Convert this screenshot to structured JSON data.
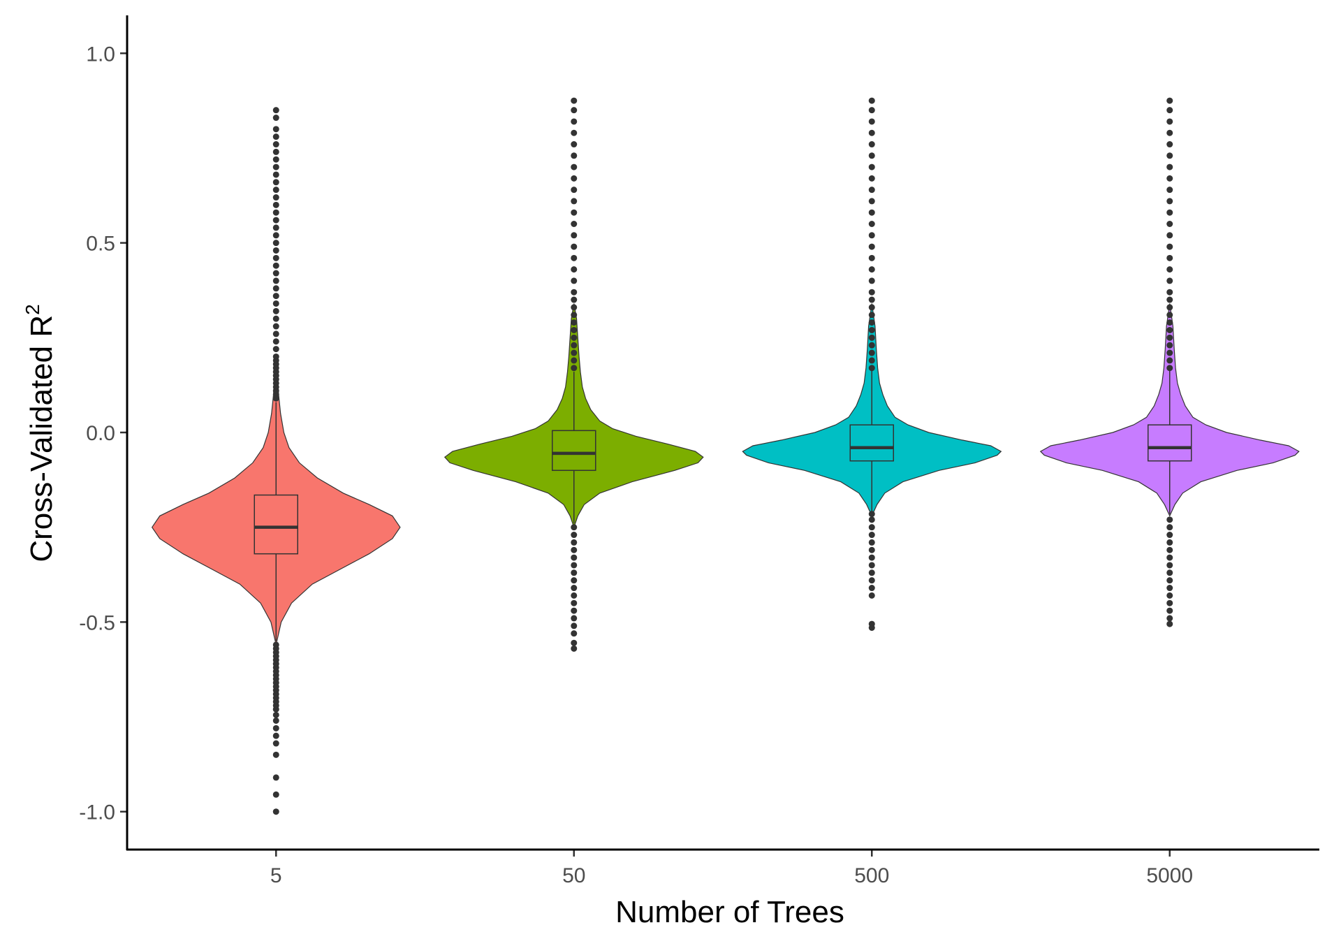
{
  "chart_data": {
    "type": "violin",
    "xlabel": "Number of Trees",
    "ylabel": "Cross-Validated R",
    "ylabel_superscript": "2",
    "ylim": [
      -1.1,
      1.1
    ],
    "y_ticks": [
      -1.0,
      -0.5,
      0.0,
      0.5,
      1.0
    ],
    "y_tick_labels": [
      "-1.0",
      "-0.5",
      "0.0",
      "0.5",
      "1.0"
    ],
    "categories": [
      "5",
      "50",
      "500",
      "5000"
    ],
    "grid": false,
    "legend": "none",
    "series": [
      {
        "category": "5",
        "color": "#F8766D",
        "box": {
          "lower_whisker": -0.55,
          "q1": -0.32,
          "median": -0.25,
          "q3": -0.165,
          "upper_whisker": 0.08
        },
        "density": [
          [
            -0.56,
            0.0
          ],
          [
            -0.5,
            0.04
          ],
          [
            -0.45,
            0.12
          ],
          [
            -0.4,
            0.28
          ],
          [
            -0.36,
            0.5
          ],
          [
            -0.32,
            0.72
          ],
          [
            -0.28,
            0.9
          ],
          [
            -0.25,
            0.96
          ],
          [
            -0.22,
            0.9
          ],
          [
            -0.19,
            0.72
          ],
          [
            -0.16,
            0.52
          ],
          [
            -0.12,
            0.32
          ],
          [
            -0.08,
            0.18
          ],
          [
            -0.04,
            0.1
          ],
          [
            0.0,
            0.06
          ],
          [
            0.05,
            0.035
          ],
          [
            0.1,
            0.02
          ],
          [
            0.15,
            0.012
          ],
          [
            0.2,
            0.0
          ]
        ],
        "outliers": [
          -1.0,
          -0.955,
          -0.91,
          -0.85,
          -0.82,
          -0.8,
          -0.78,
          -0.76,
          -0.745,
          -0.73,
          -0.72,
          -0.71,
          -0.7,
          -0.69,
          -0.68,
          -0.67,
          -0.66,
          -0.65,
          -0.64,
          -0.63,
          -0.62,
          -0.61,
          -0.6,
          -0.59,
          -0.58,
          -0.57,
          -0.56,
          0.09,
          0.1,
          0.11,
          0.12,
          0.13,
          0.14,
          0.15,
          0.16,
          0.17,
          0.18,
          0.19,
          0.2,
          0.22,
          0.24,
          0.26,
          0.28,
          0.3,
          0.32,
          0.34,
          0.36,
          0.38,
          0.4,
          0.42,
          0.44,
          0.46,
          0.48,
          0.5,
          0.52,
          0.54,
          0.56,
          0.58,
          0.6,
          0.62,
          0.64,
          0.66,
          0.68,
          0.7,
          0.72,
          0.74,
          0.76,
          0.78,
          0.8,
          0.83,
          0.85
        ]
      },
      {
        "category": "50",
        "color": "#7CAE00",
        "box": {
          "lower_whisker": -0.24,
          "q1": -0.1,
          "median": -0.055,
          "q3": 0.005,
          "upper_whisker": 0.16
        },
        "density": [
          [
            -0.25,
            0.0
          ],
          [
            -0.22,
            0.03
          ],
          [
            -0.19,
            0.08
          ],
          [
            -0.16,
            0.2
          ],
          [
            -0.13,
            0.45
          ],
          [
            -0.1,
            0.78
          ],
          [
            -0.08,
            0.96
          ],
          [
            -0.065,
            1.0
          ],
          [
            -0.05,
            0.94
          ],
          [
            -0.03,
            0.72
          ],
          [
            -0.01,
            0.48
          ],
          [
            0.01,
            0.3
          ],
          [
            0.03,
            0.2
          ],
          [
            0.06,
            0.13
          ],
          [
            0.09,
            0.09
          ],
          [
            0.12,
            0.065
          ],
          [
            0.16,
            0.05
          ],
          [
            0.2,
            0.04
          ],
          [
            0.25,
            0.03
          ],
          [
            0.3,
            0.02
          ],
          [
            0.34,
            0.0
          ]
        ],
        "outliers": [
          -0.57,
          -0.555,
          -0.53,
          -0.51,
          -0.49,
          -0.47,
          -0.45,
          -0.43,
          -0.41,
          -0.39,
          -0.37,
          -0.35,
          -0.33,
          -0.31,
          -0.29,
          -0.27,
          -0.25,
          0.17,
          0.19,
          0.21,
          0.23,
          0.25,
          0.27,
          0.29,
          0.31,
          0.33,
          0.35,
          0.37,
          0.4,
          0.43,
          0.46,
          0.49,
          0.52,
          0.55,
          0.58,
          0.61,
          0.64,
          0.67,
          0.7,
          0.73,
          0.76,
          0.79,
          0.82,
          0.85,
          0.875
        ]
      },
      {
        "category": "500",
        "color": "#00BFC4",
        "box": {
          "lower_whisker": -0.21,
          "q1": -0.075,
          "median": -0.04,
          "q3": 0.02,
          "upper_whisker": 0.165
        },
        "density": [
          [
            -0.22,
            0.0
          ],
          [
            -0.19,
            0.04
          ],
          [
            -0.16,
            0.1
          ],
          [
            -0.13,
            0.24
          ],
          [
            -0.1,
            0.52
          ],
          [
            -0.08,
            0.8
          ],
          [
            -0.06,
            0.97
          ],
          [
            -0.05,
            1.0
          ],
          [
            -0.035,
            0.92
          ],
          [
            -0.02,
            0.7
          ],
          [
            0.0,
            0.44
          ],
          [
            0.02,
            0.28
          ],
          [
            0.04,
            0.18
          ],
          [
            0.07,
            0.12
          ],
          [
            0.1,
            0.085
          ],
          [
            0.13,
            0.06
          ],
          [
            0.17,
            0.045
          ],
          [
            0.22,
            0.035
          ],
          [
            0.28,
            0.025
          ],
          [
            0.34,
            0.0
          ]
        ],
        "outliers": [
          -0.515,
          -0.505,
          -0.43,
          -0.41,
          -0.39,
          -0.37,
          -0.35,
          -0.33,
          -0.31,
          -0.29,
          -0.27,
          -0.25,
          -0.23,
          -0.215,
          0.17,
          0.19,
          0.21,
          0.23,
          0.25,
          0.27,
          0.29,
          0.31,
          0.33,
          0.35,
          0.37,
          0.4,
          0.43,
          0.46,
          0.49,
          0.52,
          0.55,
          0.58,
          0.61,
          0.64,
          0.67,
          0.7,
          0.73,
          0.76,
          0.79,
          0.82,
          0.85,
          0.875
        ]
      },
      {
        "category": "5000",
        "color": "#C77CFF",
        "box": {
          "lower_whisker": -0.215,
          "q1": -0.075,
          "median": -0.04,
          "q3": 0.02,
          "upper_whisker": 0.165
        },
        "density": [
          [
            -0.22,
            0.0
          ],
          [
            -0.19,
            0.04
          ],
          [
            -0.16,
            0.1
          ],
          [
            -0.13,
            0.24
          ],
          [
            -0.1,
            0.52
          ],
          [
            -0.08,
            0.8
          ],
          [
            -0.06,
            0.97
          ],
          [
            -0.05,
            1.0
          ],
          [
            -0.035,
            0.92
          ],
          [
            -0.02,
            0.7
          ],
          [
            0.0,
            0.44
          ],
          [
            0.02,
            0.28
          ],
          [
            0.04,
            0.18
          ],
          [
            0.07,
            0.12
          ],
          [
            0.1,
            0.085
          ],
          [
            0.13,
            0.06
          ],
          [
            0.17,
            0.045
          ],
          [
            0.22,
            0.035
          ],
          [
            0.28,
            0.025
          ],
          [
            0.34,
            0.0
          ]
        ],
        "outliers": [
          -0.505,
          -0.49,
          -0.47,
          -0.45,
          -0.43,
          -0.41,
          -0.39,
          -0.37,
          -0.35,
          -0.33,
          -0.31,
          -0.29,
          -0.27,
          -0.25,
          -0.23,
          0.17,
          0.19,
          0.21,
          0.23,
          0.25,
          0.27,
          0.29,
          0.31,
          0.33,
          0.35,
          0.37,
          0.4,
          0.43,
          0.46,
          0.49,
          0.52,
          0.55,
          0.58,
          0.61,
          0.64,
          0.67,
          0.7,
          0.73,
          0.76,
          0.79,
          0.82,
          0.85,
          0.875
        ]
      }
    ]
  }
}
